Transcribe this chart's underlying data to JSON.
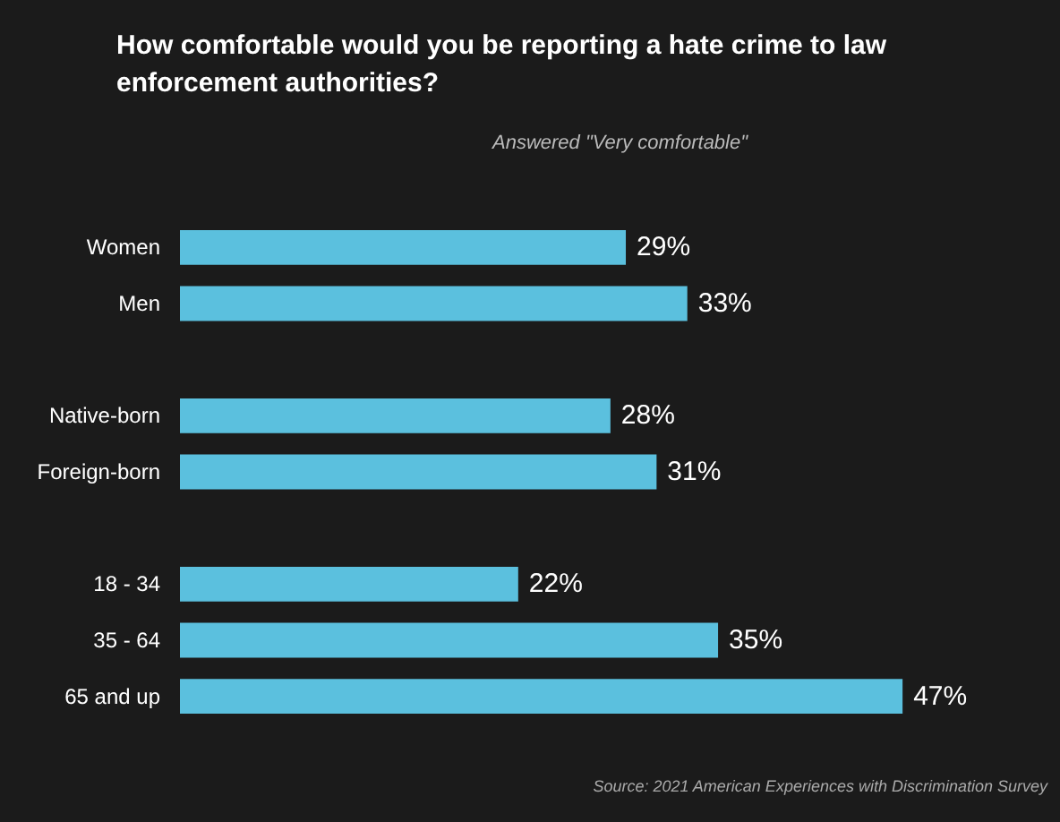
{
  "chart_data": {
    "type": "bar",
    "orientation": "horizontal",
    "title": "How comfortable would you be reporting a hate crime to law enforcement authorities?",
    "subtitle": "Answered \"Very comfortable\"",
    "categories": [
      "Women",
      "Men",
      null,
      "Native-born",
      "Foreign-born",
      null,
      "18 - 34",
      "35 - 64",
      "65 and up"
    ],
    "values": [
      29,
      33,
      null,
      28,
      31,
      null,
      22,
      35,
      47
    ],
    "value_labels": [
      "29%",
      "33%",
      null,
      "28%",
      "31%",
      null,
      "22%",
      "35%",
      "47%"
    ],
    "color": "#5bc0de",
    "grid": false,
    "annotations": [
      "Source: 2021 American Experiences with Discrimination Survey"
    ]
  }
}
